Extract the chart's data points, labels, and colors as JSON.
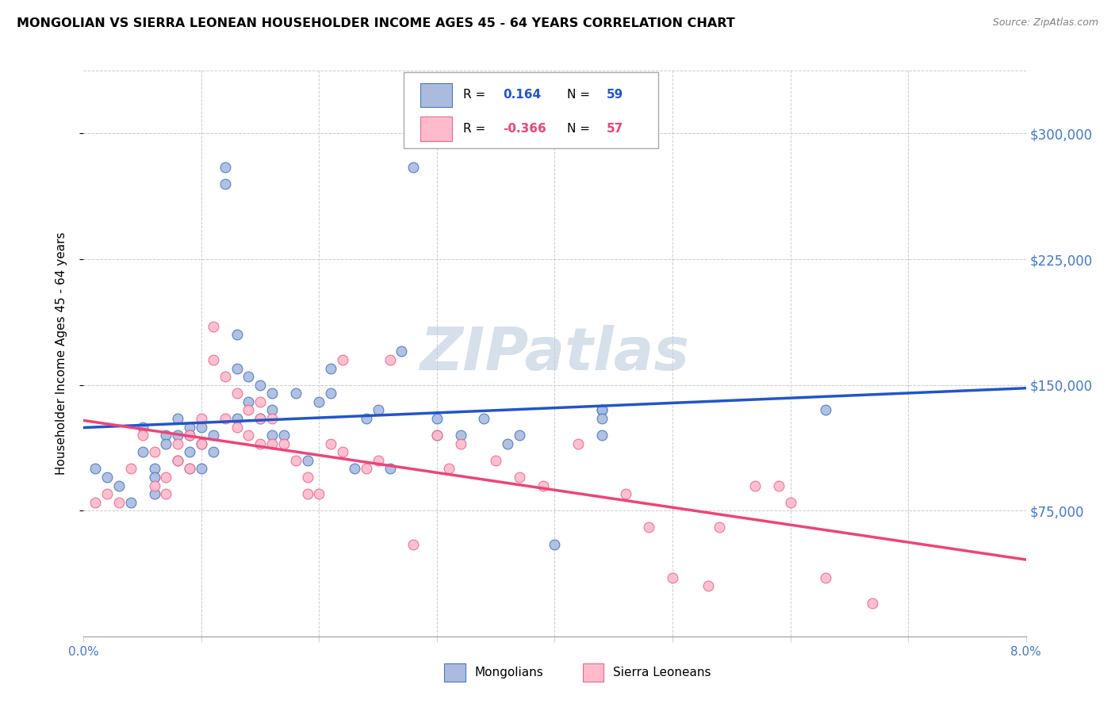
{
  "title": "MONGOLIAN VS SIERRA LEONEAN HOUSEHOLDER INCOME AGES 45 - 64 YEARS CORRELATION CHART",
  "source": "Source: ZipAtlas.com",
  "ylabel": "Householder Income Ages 45 - 64 years",
  "xlim": [
    0.0,
    0.08
  ],
  "ylim": [
    0,
    337500
  ],
  "yticks": [
    75000,
    150000,
    225000,
    300000
  ],
  "ytick_labels": [
    "$75,000",
    "$150,000",
    "$225,000",
    "$300,000"
  ],
  "xticks": [
    0.0,
    0.01,
    0.02,
    0.03,
    0.04,
    0.05,
    0.06,
    0.07,
    0.08
  ],
  "mongolian_R": "0.164",
  "mongolian_N": "59",
  "sierra_R": "-0.366",
  "sierra_N": "57",
  "mongolian_face": "#AABBDD",
  "sierra_face": "#FFBBCC",
  "mongolian_edge": "#4477CC",
  "sierra_edge": "#EE6688",
  "mongolian_line": "#2255CC",
  "sierra_line": "#EE4477",
  "watermark": "ZIPatlas",
  "watermark_color": "#BBCCDD",
  "tick_color": "#4477CC",
  "mongolian_x": [
    0.001,
    0.002,
    0.003,
    0.004,
    0.005,
    0.005,
    0.006,
    0.006,
    0.006,
    0.007,
    0.007,
    0.008,
    0.008,
    0.008,
    0.009,
    0.009,
    0.009,
    0.009,
    0.01,
    0.01,
    0.01,
    0.011,
    0.011,
    0.012,
    0.012,
    0.013,
    0.013,
    0.013,
    0.014,
    0.014,
    0.015,
    0.015,
    0.016,
    0.016,
    0.016,
    0.017,
    0.018,
    0.019,
    0.02,
    0.021,
    0.021,
    0.023,
    0.024,
    0.025,
    0.026,
    0.027,
    0.028,
    0.03,
    0.03,
    0.032,
    0.034,
    0.036,
    0.037,
    0.04,
    0.044,
    0.044,
    0.044,
    0.044,
    0.063
  ],
  "mongolian_y": [
    100000,
    95000,
    90000,
    80000,
    125000,
    110000,
    100000,
    95000,
    85000,
    120000,
    115000,
    130000,
    120000,
    105000,
    125000,
    120000,
    110000,
    100000,
    125000,
    115000,
    100000,
    120000,
    110000,
    280000,
    270000,
    180000,
    160000,
    130000,
    155000,
    140000,
    150000,
    130000,
    145000,
    135000,
    120000,
    120000,
    145000,
    105000,
    140000,
    160000,
    145000,
    100000,
    130000,
    135000,
    100000,
    170000,
    280000,
    130000,
    120000,
    120000,
    130000,
    115000,
    120000,
    55000,
    135000,
    135000,
    130000,
    120000,
    135000
  ],
  "sierra_x": [
    0.001,
    0.002,
    0.003,
    0.004,
    0.005,
    0.006,
    0.006,
    0.007,
    0.007,
    0.008,
    0.008,
    0.009,
    0.009,
    0.01,
    0.01,
    0.011,
    0.011,
    0.012,
    0.012,
    0.013,
    0.013,
    0.014,
    0.014,
    0.015,
    0.015,
    0.015,
    0.016,
    0.016,
    0.017,
    0.018,
    0.019,
    0.019,
    0.02,
    0.021,
    0.022,
    0.022,
    0.024,
    0.025,
    0.026,
    0.028,
    0.03,
    0.031,
    0.032,
    0.035,
    0.037,
    0.039,
    0.042,
    0.046,
    0.048,
    0.05,
    0.053,
    0.054,
    0.057,
    0.059,
    0.06,
    0.063,
    0.067
  ],
  "sierra_y": [
    80000,
    85000,
    80000,
    100000,
    120000,
    110000,
    90000,
    95000,
    85000,
    115000,
    105000,
    120000,
    100000,
    130000,
    115000,
    185000,
    165000,
    155000,
    130000,
    145000,
    125000,
    135000,
    120000,
    115000,
    140000,
    130000,
    115000,
    130000,
    115000,
    105000,
    95000,
    85000,
    85000,
    115000,
    165000,
    110000,
    100000,
    105000,
    165000,
    55000,
    120000,
    100000,
    115000,
    105000,
    95000,
    90000,
    115000,
    85000,
    65000,
    35000,
    30000,
    65000,
    90000,
    90000,
    80000,
    35000,
    20000
  ]
}
